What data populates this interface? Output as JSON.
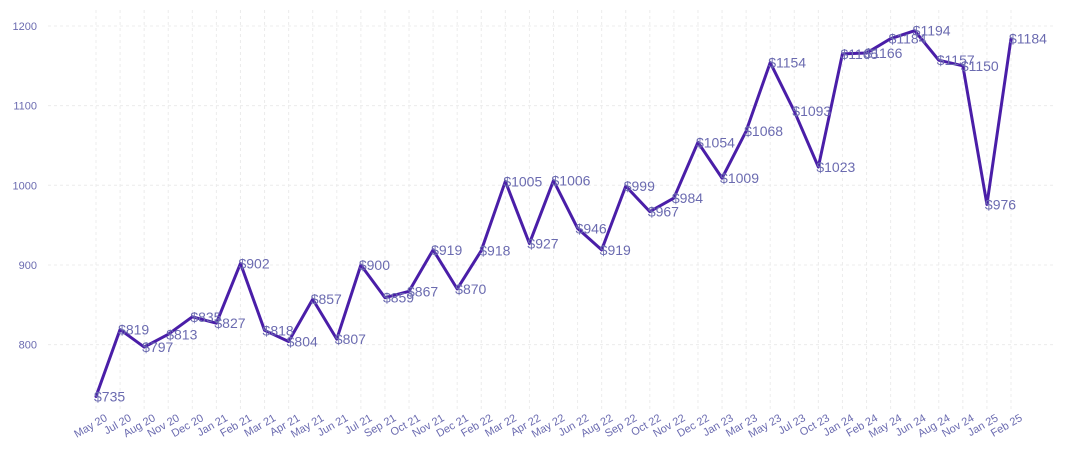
{
  "chart_data": {
    "type": "line",
    "title": "",
    "xlabel": "",
    "ylabel": "",
    "ylim": [
      718,
      1215
    ],
    "yticks": [
      800,
      900,
      1000,
      1100,
      1200
    ],
    "grid": true,
    "legend": "none",
    "line_color": "#4a1ea8",
    "label_color": "#6b6bb0",
    "value_prefix": "$",
    "categories": [
      "May 20",
      "Jul 20",
      "Aug 20",
      "Nov 20",
      "Dec 20",
      "Jan 21",
      "Feb 21",
      "Mar 21",
      "Apr 21",
      "May 21",
      "Jun 21",
      "Jul 21",
      "Sep 21",
      "Oct 21",
      "Nov 21",
      "Dec 21",
      "Feb 22",
      "Mar 22",
      "Apr 22",
      "May 22",
      "Jun 22",
      "Aug 22",
      "Sep 22",
      "Oct 22",
      "Nov 22",
      "Dec 22",
      "Jan 23",
      "Mar 23",
      "May 23",
      "Jul 23",
      "Oct 23",
      "Jan 24",
      "Feb 24",
      "May 24",
      "Jun 24",
      "Aug 24",
      "Nov 24",
      "Jan 25",
      "Feb 25"
    ],
    "values": [
      735,
      819,
      797,
      813,
      835,
      827,
      902,
      818,
      804,
      857,
      807,
      900,
      859,
      867,
      919,
      870,
      918,
      1005,
      927,
      1006,
      946,
      919,
      999,
      967,
      984,
      1054,
      1009,
      1068,
      1154,
      1093,
      1023,
      1165,
      1166,
      1184,
      1194,
      1157,
      1150,
      976,
      1184
    ]
  }
}
